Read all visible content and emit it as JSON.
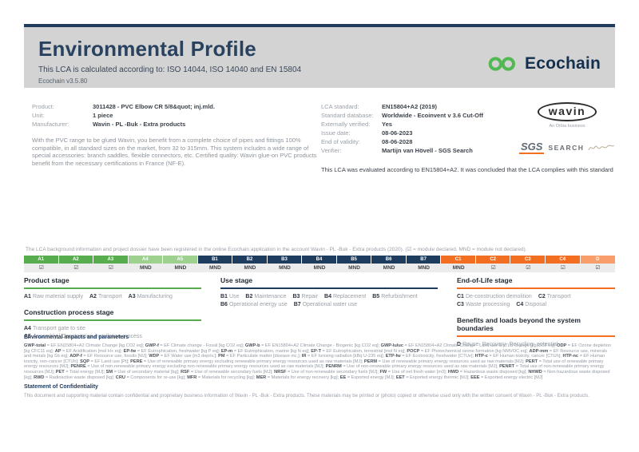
{
  "header": {
    "title": "Environmental Profile",
    "subtitle": "This LCA is calculated according to: ISO 14044, ISO 14040 and EN 15804",
    "version": "Ecochain v3.5.80",
    "logo_text": "Ecochain",
    "brand_green": "#52b852",
    "brand_navy": "#15304c"
  },
  "product_info": {
    "rows": [
      {
        "label": "Product:",
        "value": "3011428 - PVC Elbow CR 5/8&quot; inj.mld."
      },
      {
        "label": "Unit:",
        "value": "1 piece"
      },
      {
        "label": "Manufacturer:",
        "value": "Wavin - PL -Buk - Extra products"
      }
    ],
    "description": "With the PVC range to be glued Wavin, you benefit from a complete choice of pipes and fittings 100% compatible, in all standard sizes on the market, from 32 to 315mm. This system includes a wide range of special accessories: branch saddles, flexible connectors, etc. Certified quality: Wavin glue-on PVC products benefit from the necessary certifications in France (NF-E)."
  },
  "lca_info": {
    "rows": [
      {
        "label": "LCA standard:",
        "value": "EN15804+A2 (2019)"
      },
      {
        "label": "Standard database:",
        "value": "Worldwide - Ecoinvent v 3.6 Cut-Off"
      },
      {
        "label": "Externally verified:",
        "value": "Yes"
      },
      {
        "label": "Issue date:",
        "value": "08-06-2023"
      },
      {
        "label": "End of validity:",
        "value": "08-06-2028"
      },
      {
        "label": "Verifier:",
        "value": "Martijn van Hövell - SGS Search"
      }
    ],
    "evaluation": "This LCA was evaluated according to EN15804+A2. It was concluded that the LCA complies with this standard"
  },
  "logos": {
    "wavin": "wavin",
    "wavin_sub": "An Orbia business",
    "sgs": "SGS",
    "search": "SEARCH"
  },
  "modules": {
    "registration_note": "The LCA background information and project dossier have been registered in the online Ecochain application in the account Wavin - PL -Buk - Extra products (2020). (☑ = module declared, MND = module not declared).",
    "columns": [
      {
        "code": "A1",
        "status": "☑",
        "color": "#57ad4e"
      },
      {
        "code": "A2",
        "status": "☑",
        "color": "#57ad4e"
      },
      {
        "code": "A3",
        "status": "☑",
        "color": "#57ad4e"
      },
      {
        "code": "A4",
        "status": "MND",
        "color": "#9ed190"
      },
      {
        "code": "A5",
        "status": "MND",
        "color": "#9ed190"
      },
      {
        "code": "B1",
        "status": "MND",
        "color": "#1d3c5e"
      },
      {
        "code": "B2",
        "status": "MND",
        "color": "#1d3c5e"
      },
      {
        "code": "B3",
        "status": "MND",
        "color": "#1d3c5e"
      },
      {
        "code": "B4",
        "status": "MND",
        "color": "#1d3c5e"
      },
      {
        "code": "B5",
        "status": "MND",
        "color": "#1d3c5e"
      },
      {
        "code": "B6",
        "status": "MND",
        "color": "#1d3c5e"
      },
      {
        "code": "B7",
        "status": "MND",
        "color": "#1d3c5e"
      },
      {
        "code": "C1",
        "status": "MND",
        "color": "#f26f21"
      },
      {
        "code": "C2",
        "status": "☑",
        "color": "#f26f21"
      },
      {
        "code": "C3",
        "status": "☑",
        "color": "#f26f21"
      },
      {
        "code": "C4",
        "status": "☑",
        "color": "#f26f21"
      },
      {
        "code": "D",
        "status": "☑",
        "color": "#f89e6b"
      }
    ]
  },
  "stages": {
    "groups": [
      {
        "column": 1,
        "heading": "Product stage",
        "color": "#57ad4e",
        "layout": "inline",
        "items": [
          {
            "code": "A1",
            "label": "Raw material supply"
          },
          {
            "code": "A2",
            "label": "Transport"
          },
          {
            "code": "A3",
            "label": "Manufacturing"
          }
        ]
      },
      {
        "column": 1,
        "heading": "Construction process stage",
        "color": "#57ad4e",
        "layout": "block",
        "items": [
          {
            "code": "A4",
            "label": "Transport gate to site"
          },
          {
            "code": "A5",
            "label": "Assembly / Construction installation process"
          }
        ]
      },
      {
        "column": 2,
        "heading": "Use stage",
        "color": "#1d3c5e",
        "layout": "inline",
        "items": [
          {
            "code": "B1",
            "label": "Use"
          },
          {
            "code": "B2",
            "label": "Maintenance"
          },
          {
            "code": "B3",
            "label": "Repair"
          },
          {
            "code": "B4",
            "label": "Replacement"
          },
          {
            "code": "B5",
            "label": "Refurbishment"
          },
          {
            "code": "B6",
            "label": "Operational energy use"
          },
          {
            "code": "B7",
            "label": "Operational water use"
          }
        ]
      },
      {
        "column": 3,
        "heading": "End-of-Life stage",
        "color": "#f26f21",
        "layout": "inline",
        "items": [
          {
            "code": "C1",
            "label": "De-construction demolition"
          },
          {
            "code": "C2",
            "label": "Transport"
          },
          {
            "code": "C3",
            "label": "Waste processing"
          },
          {
            "code": "C4",
            "label": "Disposal"
          }
        ]
      },
      {
        "column": 3,
        "heading": "Benefits and loads beyond the system boundaries",
        "color": "#f26f21",
        "layout": "inline",
        "items": [
          {
            "code": "D",
            "label": "Reuse- Recovery- Recycling- potential"
          }
        ]
      }
    ]
  },
  "legend": {
    "heading": "Environmental impacts and parameters",
    "items": [
      {
        "k": "GWP-total",
        "v": "EF EN15804+A2 Climate Change [kg CO2 eq]"
      },
      {
        "k": "GWP-f",
        "v": "EF Climate change - Fossil [kg CO2 eq]"
      },
      {
        "k": "GWP-b",
        "v": "EF EN15804+A2 Climate Change - Biogenic [kg CO2 eq]"
      },
      {
        "k": "GWP-luluc",
        "v": "EF EN15804+A2 Climate Change - Land use and LU change [kg CO2 eq]"
      },
      {
        "k": "ODP",
        "v": "EF Ozone depletion [kg CFC11 eq]"
      },
      {
        "k": "AP",
        "v": "EF Acidification [mol H+ eq]"
      },
      {
        "k": "EP-fw",
        "v": "EF Eutrophication, freshwater [kg P eq]"
      },
      {
        "k": "EP-m",
        "v": "EF Eutrophication, marine [kg N eq]"
      },
      {
        "k": "EP-T",
        "v": "EF Eutrophication, terrestrial [mol N eq]"
      },
      {
        "k": "POCP",
        "v": "EF Photochemical ozone formation [kg NMVOC eq]"
      },
      {
        "k": "ADP-mm",
        "v": "EF Resource use, minerals and metals [kg Sb eq]"
      },
      {
        "k": "ADP-f",
        "v": "EF Resource use, fossils [MJ]"
      },
      {
        "k": "WDP",
        "v": "EF Water use [m3 depriv.]"
      },
      {
        "k": "PM",
        "v": "EF Particulate matter [disease inc.]"
      },
      {
        "k": "IR",
        "v": "EF Ionising radiation [kBq U-235 eq]"
      },
      {
        "k": "ETP-fw",
        "v": "EF Ecotoxicity, freshwater [CTUe]"
      },
      {
        "k": "HTP-c",
        "v": "EF Human toxicity, cancer [CTUh]"
      },
      {
        "k": "HTP-nc",
        "v": "EF Human toxicity, non-cancer [CTUh]"
      },
      {
        "k": "SQP",
        "v": "EF Land use [Pt]"
      },
      {
        "k": "PERE",
        "v": "Use of renewable primary energy excluding renewable primary energy resources used as raw materials [MJ]"
      },
      {
        "k": "PERM",
        "v": "Use of renewable primary energy resources used as raw materials [MJ]"
      },
      {
        "k": "PERT",
        "v": "Total use of renewable primary energy resources [MJ]"
      },
      {
        "k": "PENRE",
        "v": "Use of non-renewable primary energy excluding non-renewable primary energy resources used as raw materials [MJ]"
      },
      {
        "k": "PENRM",
        "v": "Use of non-renewable primary energy resources used as raw materials [MJ]"
      },
      {
        "k": "PENRT",
        "v": "Total use of non-renewable primary energy resources [MJ]"
      },
      {
        "k": "PET",
        "v": "Total energy [MJ]"
      },
      {
        "k": "SM",
        "v": "Use of secondary material [kg]"
      },
      {
        "k": "RSF",
        "v": "Use of renewable secondary fuels [MJ]"
      },
      {
        "k": "NRSF",
        "v": "Use of non-renewable secondary fuels [MJ]"
      },
      {
        "k": "FW",
        "v": "Use of net fresh water [m3]"
      },
      {
        "k": "HWD",
        "v": "Hazardous waste disposed [kg]"
      },
      {
        "k": "NHWD",
        "v": "Non-hazardous waste disposed [kg]"
      },
      {
        "k": "RWD",
        "v": "Radioactive waste disposed [kg]"
      },
      {
        "k": "CRU",
        "v": "Components for re-use [kg]"
      },
      {
        "k": "MFR",
        "v": "Materials for recycling [kg]"
      },
      {
        "k": "MER",
        "v": "Materials for energy recovery [kg]"
      },
      {
        "k": "EE",
        "v": "Exported energy [MJ]"
      },
      {
        "k": "EET",
        "v": "Exported energy thermic [MJ]"
      },
      {
        "k": "EEE",
        "v": "Exported energy electric [MJ]"
      }
    ]
  },
  "confidentiality": {
    "heading": "Statement of Confidentiality",
    "text": "This document and supporting material contain confidential and proprietary business information of Wavin - PL -Buk - Extra products. These materials may be printed or (photo) copied or otherwise used only with the written consent of Wavin - PL -Buk - Extra products."
  }
}
